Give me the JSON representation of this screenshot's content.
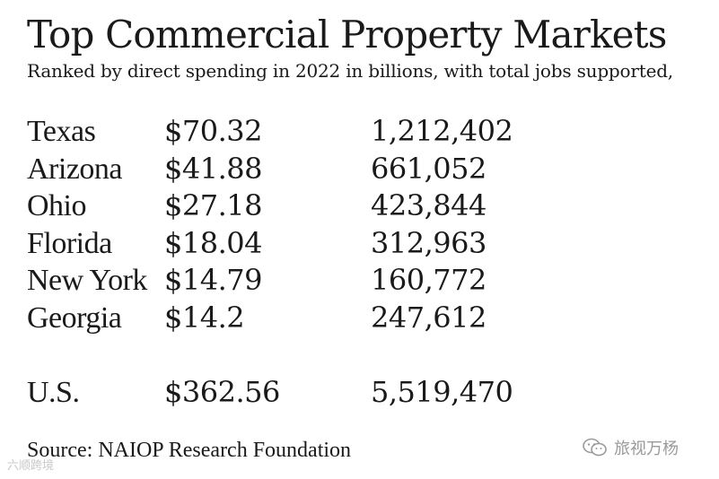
{
  "title": "Top Commercial Property Markets",
  "subtitle": "Ranked by direct spending in 2022 in billions, with total jobs supported,",
  "source": "Source: NAIOP Research Foundation",
  "chart_data": {
    "type": "table",
    "title": "Top Commercial Property Markets",
    "subtitle": "Ranked by direct spending in 2022 in billions, with total jobs supported,",
    "columns": [
      "",
      "",
      ""
    ],
    "rows": [
      {
        "state": "Texas",
        "spending": "$70.32",
        "jobs": "1,212,402"
      },
      {
        "state": "Arizona",
        "spending": "$41.88",
        "jobs": "661,052"
      },
      {
        "state": "Ohio",
        "spending": "$27.18",
        "jobs": "423,844"
      },
      {
        "state": "Florida",
        "spending": "$18.04",
        "jobs": "312,963"
      },
      {
        "state": "New York",
        "spending": "$14.79",
        "jobs": "160,772"
      },
      {
        "state": "Georgia",
        "spending": "$14.2",
        "jobs": "247,612"
      }
    ],
    "total": {
      "state": "U.S.",
      "spending": "$362.56",
      "jobs": "5,519,470"
    }
  },
  "watermarks": {
    "left": "六顺跨境",
    "right": "旅视万杨"
  }
}
